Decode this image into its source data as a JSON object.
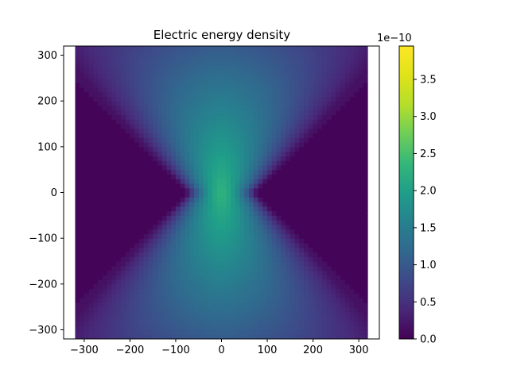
{
  "chart_data": {
    "type": "heatmap",
    "title": "Electric energy density",
    "xlabel": "",
    "ylabel": "",
    "x_range": [
      -320,
      320
    ],
    "y_range": [
      -320,
      320
    ],
    "xlim": [
      -345,
      345
    ],
    "ylim": [
      -320,
      320
    ],
    "x_ticks": [
      -300,
      -200,
      -100,
      0,
      100,
      200,
      300
    ],
    "y_ticks": [
      -300,
      -200,
      -100,
      0,
      100,
      200,
      300
    ],
    "x_tick_labels": [
      "−300",
      "−200",
      "−100",
      "0",
      "100",
      "200",
      "300"
    ],
    "y_tick_labels": [
      "−300",
      "−200",
      "−100",
      "0",
      "100",
      "200",
      "300"
    ],
    "colormap": "viridis",
    "colorbar": {
      "min": 0.0,
      "max": 3.95e-10,
      "ticks": [
        0.0,
        0.5,
        1.0,
        1.5,
        2.0,
        2.5,
        3.0,
        3.5
      ],
      "tick_labels": [
        "0.0",
        "0.5",
        "1.0",
        "1.5",
        "2.0",
        "2.5",
        "3.0",
        "3.5"
      ],
      "offset_text": "1e−10"
    },
    "grid": false,
    "field_description": "Hourglass-shaped radiation pattern: energy concentrated in two cones opening up and down from the origin, maximum (~3.9e-10) at two small lobes near (±20, 0), near zero in the left and right wedges."
  }
}
